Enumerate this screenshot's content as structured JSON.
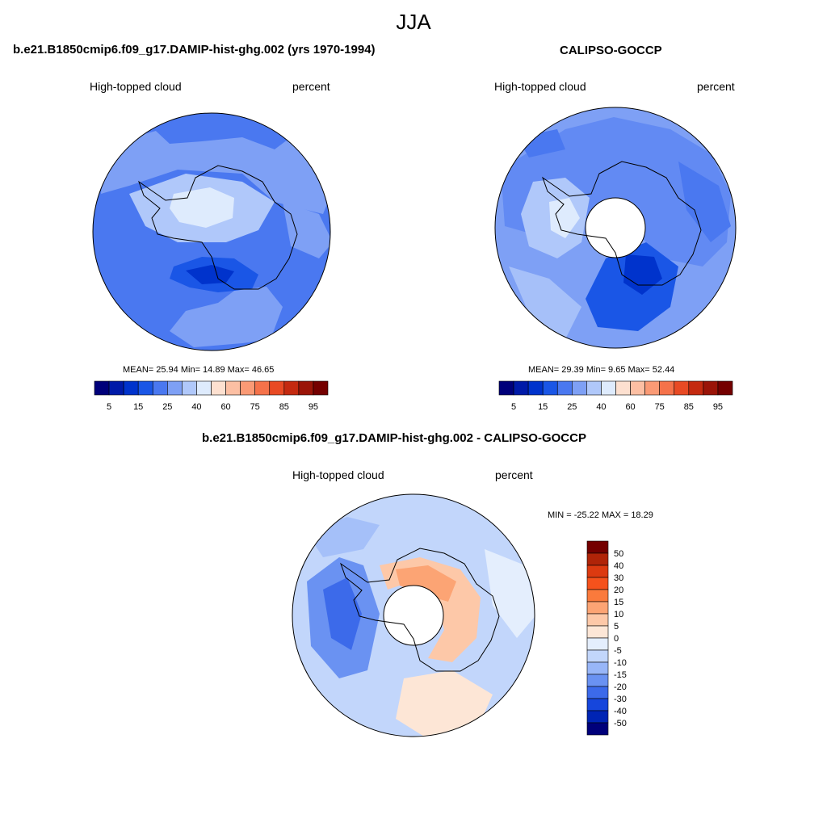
{
  "page": {
    "title": "JJA"
  },
  "panels": [
    {
      "id": "model",
      "title": "b.e21.B1850cmip6.f09_g17.DAMIP-hist-ghg.002 (yrs 1970-1994)",
      "left_label": "High-topped cloud",
      "right_label": "percent",
      "stats": "MEAN=  25.94  Min=  14.89  Max=  46.65",
      "colorbar": {
        "orientation": "horizontal",
        "ticks": [
          "5",
          "15",
          "25",
          "40",
          "60",
          "75",
          "85",
          "95"
        ],
        "colors": [
          "#00007a",
          "#001aa8",
          "#0033cc",
          "#1a56e6",
          "#4a78f0",
          "#7ea0f5",
          "#b0c8fa",
          "#deebfd",
          "#fde0d0",
          "#fcbfa3",
          "#fa9a75",
          "#f5724a",
          "#e84a24",
          "#c42a10",
          "#9a1408",
          "#740000"
        ]
      }
    },
    {
      "id": "obs",
      "title": "CALIPSO-GOCCP",
      "left_label": "High-topped cloud",
      "right_label": "percent",
      "stats": "MEAN=  29.39  Min=   9.65  Max=  52.44",
      "colorbar": {
        "orientation": "horizontal",
        "ticks": [
          "5",
          "15",
          "25",
          "40",
          "60",
          "75",
          "85",
          "95"
        ],
        "colors": [
          "#00007a",
          "#001aa8",
          "#0033cc",
          "#1a56e6",
          "#4a78f0",
          "#7ea0f5",
          "#b0c8fa",
          "#deebfd",
          "#fde0d0",
          "#fcbfa3",
          "#fa9a75",
          "#f5724a",
          "#e84a24",
          "#c42a10",
          "#9a1408",
          "#740000"
        ]
      }
    },
    {
      "id": "diff",
      "title": "b.e21.B1850cmip6.f09_g17.DAMIP-hist-ghg.002 - CALIPSO-GOCCP",
      "left_label": "High-topped cloud",
      "right_label": "percent",
      "stats": "MIN = -25.22 MAX =  18.29",
      "colorbar": {
        "orientation": "vertical",
        "ticks": [
          "50",
          "40",
          "30",
          "20",
          "15",
          "10",
          "5",
          "0",
          "-5",
          "-10",
          "-15",
          "-20",
          "-30",
          "-40",
          "-50"
        ],
        "colors": [
          "#740000",
          "#b02408",
          "#dc3a10",
          "#f5521c",
          "#fa7a3c",
          "#fca474",
          "#fdc8a8",
          "#fde6d6",
          "#e4eefd",
          "#c2d6fb",
          "#98b6f8",
          "#6a92f2",
          "#3c6aea",
          "#1646dc",
          "#0024b4",
          "#00007a"
        ]
      }
    }
  ]
}
